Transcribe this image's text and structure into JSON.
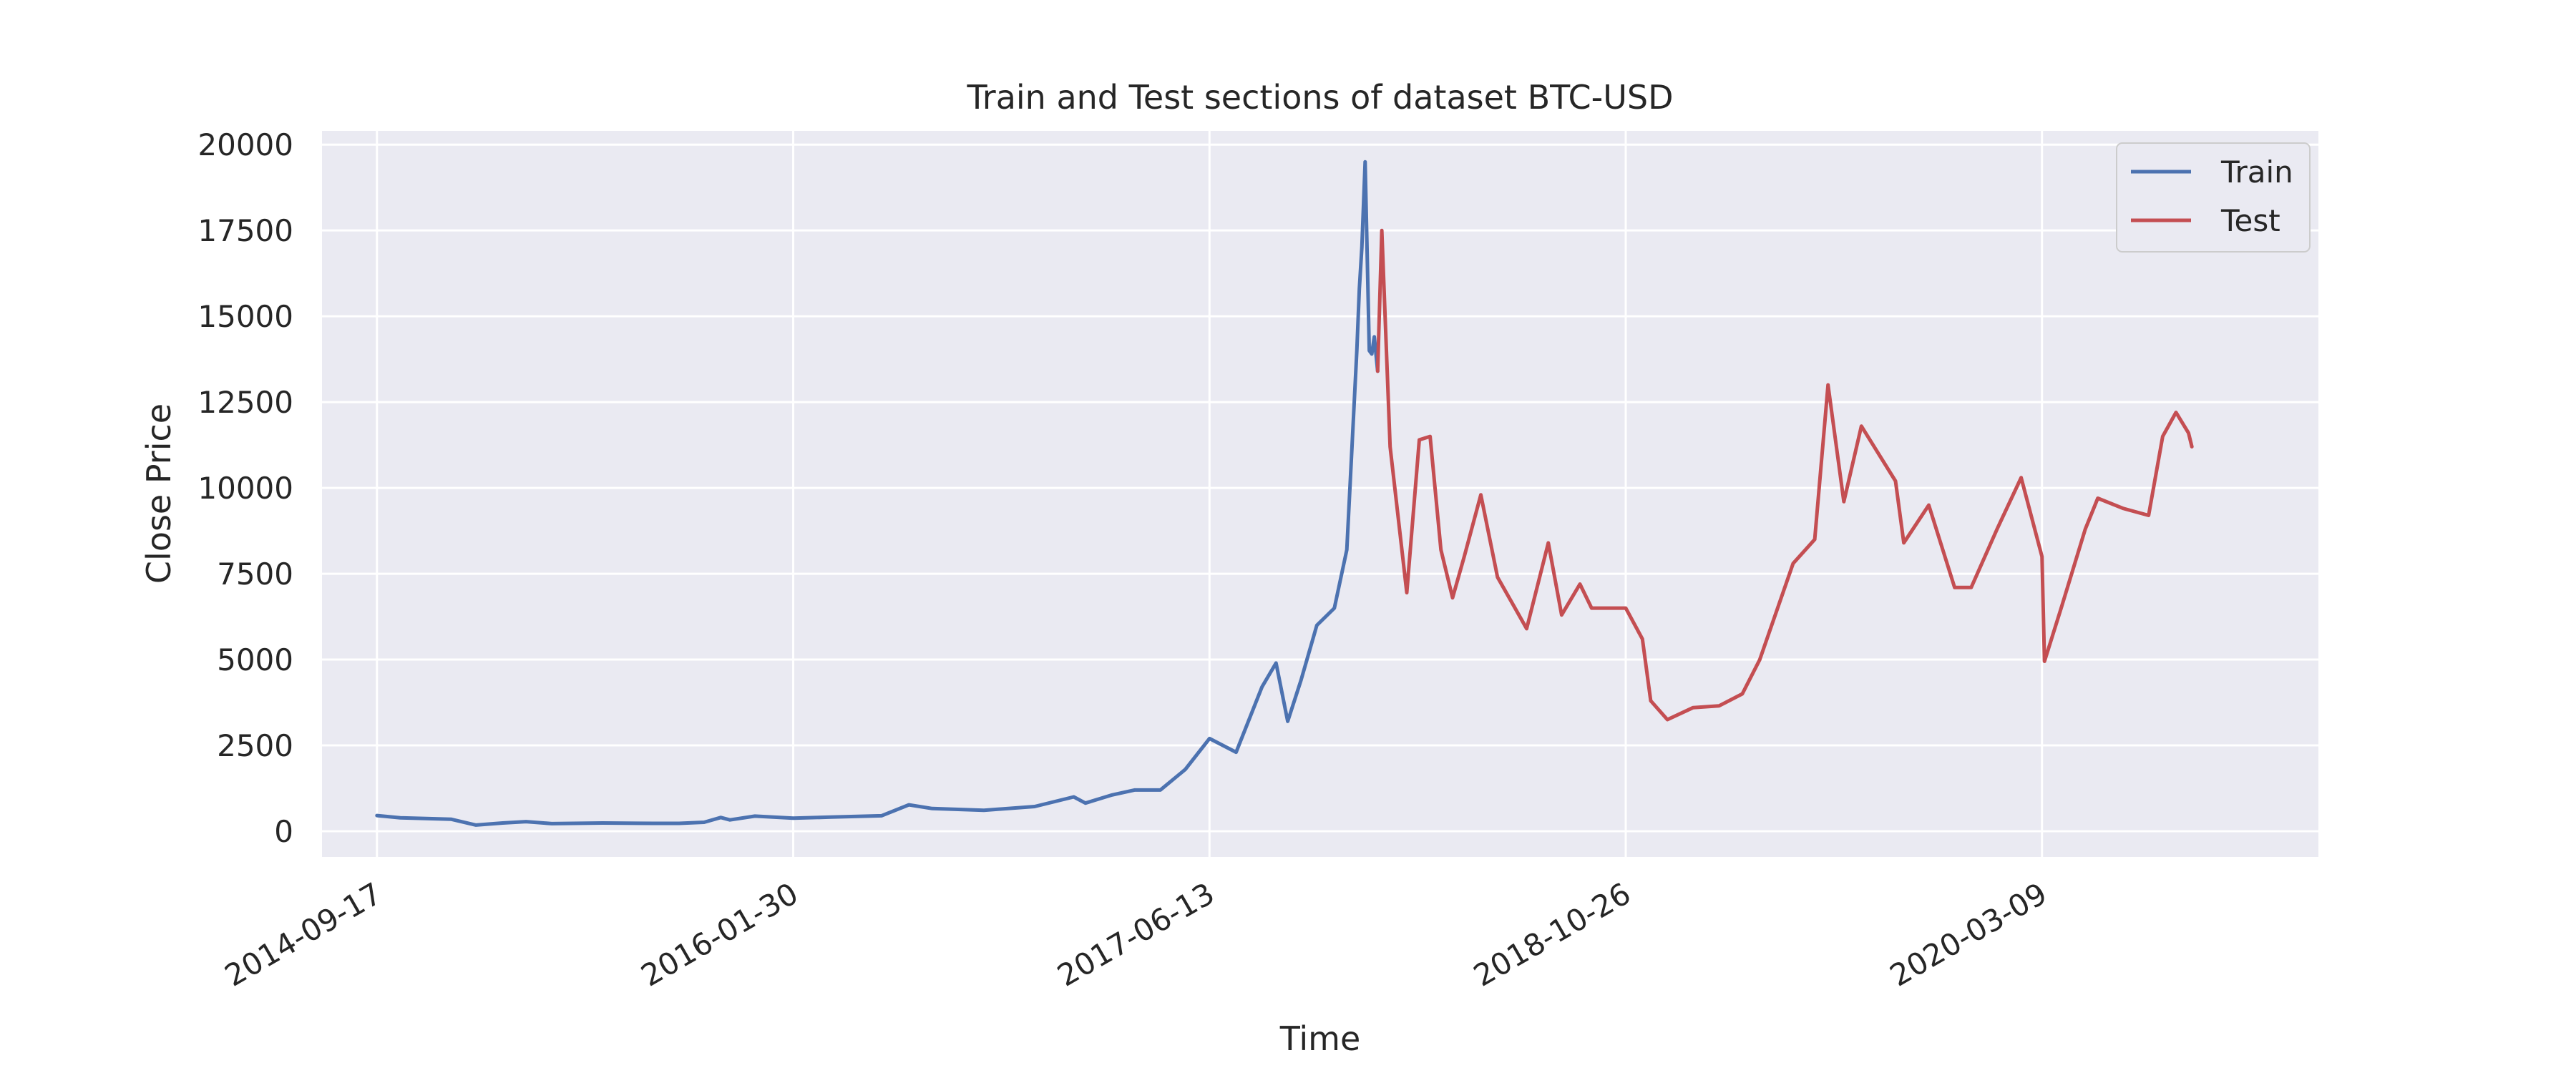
{
  "chart_data": {
    "type": "line",
    "title": "Train and Test sections of dataset BTC-USD",
    "xlabel": "Time",
    "ylabel": "Close Price",
    "x_ticks": [
      "2014-09-17",
      "2016-01-30",
      "2017-06-13",
      "2018-10-26",
      "2020-03-09"
    ],
    "y_ticks": [
      0,
      2500,
      5000,
      7500,
      10000,
      12500,
      15000,
      17500,
      20000
    ],
    "xlim": [
      "2014-07-13",
      "2021-02-04"
    ],
    "ylim": [
      -750,
      20400
    ],
    "grid": true,
    "legend_position": "top-right",
    "colors": {
      "background": "#EAEAF2",
      "grid": "#FFFFFF",
      "train": "#4C72B0",
      "test": "#C44E52"
    },
    "series": [
      {
        "name": "Train",
        "color": "#4C72B0",
        "points": [
          [
            "2014-09-17",
            457
          ],
          [
            "2014-10-15",
            390
          ],
          [
            "2014-11-15",
            370
          ],
          [
            "2014-12-15",
            350
          ],
          [
            "2015-01-14",
            180
          ],
          [
            "2015-02-15",
            240
          ],
          [
            "2015-03-15",
            280
          ],
          [
            "2015-04-15",
            220
          ],
          [
            "2015-06-15",
            240
          ],
          [
            "2015-08-15",
            230
          ],
          [
            "2015-09-15",
            230
          ],
          [
            "2015-10-15",
            260
          ],
          [
            "2015-11-04",
            400
          ],
          [
            "2015-11-15",
            330
          ],
          [
            "2015-12-15",
            440
          ],
          [
            "2016-01-30",
            380
          ],
          [
            "2016-03-15",
            410
          ],
          [
            "2016-05-15",
            450
          ],
          [
            "2016-06-17",
            770
          ],
          [
            "2016-07-15",
            660
          ],
          [
            "2016-09-15",
            610
          ],
          [
            "2016-11-15",
            720
          ],
          [
            "2017-01-01",
            1000
          ],
          [
            "2017-01-15",
            820
          ],
          [
            "2017-02-15",
            1050
          ],
          [
            "2017-03-15",
            1200
          ],
          [
            "2017-04-15",
            1200
          ],
          [
            "2017-05-15",
            1800
          ],
          [
            "2017-06-13",
            2700
          ],
          [
            "2017-07-15",
            2300
          ],
          [
            "2017-08-15",
            4200
          ],
          [
            "2017-09-01",
            4900
          ],
          [
            "2017-09-15",
            3200
          ],
          [
            "2017-10-01",
            4400
          ],
          [
            "2017-10-20",
            6000
          ],
          [
            "2017-11-10",
            6500
          ],
          [
            "2017-11-25",
            8200
          ],
          [
            "2017-12-07",
            14000
          ],
          [
            "2017-12-10",
            15800
          ],
          [
            "2017-12-13",
            17000
          ],
          [
            "2017-12-17",
            19500
          ],
          [
            "2017-12-22",
            14000
          ],
          [
            "2017-12-25",
            13900
          ],
          [
            "2017-12-28",
            14400
          ],
          [
            "2018-01-01",
            13400
          ]
        ]
      },
      {
        "name": "Test",
        "color": "#C44E52",
        "points": [
          [
            "2018-01-01",
            13400
          ],
          [
            "2018-01-06",
            17500
          ],
          [
            "2018-01-16",
            11200
          ],
          [
            "2018-02-05",
            6950
          ],
          [
            "2018-02-20",
            11400
          ],
          [
            "2018-03-05",
            11500
          ],
          [
            "2018-03-18",
            8200
          ],
          [
            "2018-04-01",
            6800
          ],
          [
            "2018-04-15",
            8000
          ],
          [
            "2018-05-05",
            9800
          ],
          [
            "2018-05-25",
            7400
          ],
          [
            "2018-06-15",
            6500
          ],
          [
            "2018-06-29",
            5900
          ],
          [
            "2018-07-25",
            8400
          ],
          [
            "2018-08-10",
            6300
          ],
          [
            "2018-09-01",
            7200
          ],
          [
            "2018-09-15",
            6500
          ],
          [
            "2018-10-26",
            6500
          ],
          [
            "2018-11-15",
            5600
          ],
          [
            "2018-11-25",
            3800
          ],
          [
            "2018-12-15",
            3250
          ],
          [
            "2019-01-15",
            3600
          ],
          [
            "2019-02-15",
            3650
          ],
          [
            "2019-03-15",
            4000
          ],
          [
            "2019-04-05",
            5000
          ],
          [
            "2019-05-15",
            7800
          ],
          [
            "2019-06-10",
            8500
          ],
          [
            "2019-06-26",
            13000
          ],
          [
            "2019-07-15",
            9600
          ],
          [
            "2019-08-05",
            11800
          ],
          [
            "2019-09-15",
            10200
          ],
          [
            "2019-09-25",
            8400
          ],
          [
            "2019-10-25",
            9500
          ],
          [
            "2019-11-25",
            7100
          ],
          [
            "2019-12-15",
            7100
          ],
          [
            "2020-01-15",
            8800
          ],
          [
            "2020-02-13",
            10300
          ],
          [
            "2020-03-09",
            8000
          ],
          [
            "2020-03-12",
            4950
          ],
          [
            "2020-04-01",
            6500
          ],
          [
            "2020-04-30",
            8800
          ],
          [
            "2020-05-15",
            9700
          ],
          [
            "2020-06-15",
            9400
          ],
          [
            "2020-07-15",
            9200
          ],
          [
            "2020-08-01",
            11500
          ],
          [
            "2020-08-17",
            12200
          ],
          [
            "2020-09-01",
            11600
          ],
          [
            "2020-09-05",
            11200
          ]
        ]
      }
    ]
  }
}
